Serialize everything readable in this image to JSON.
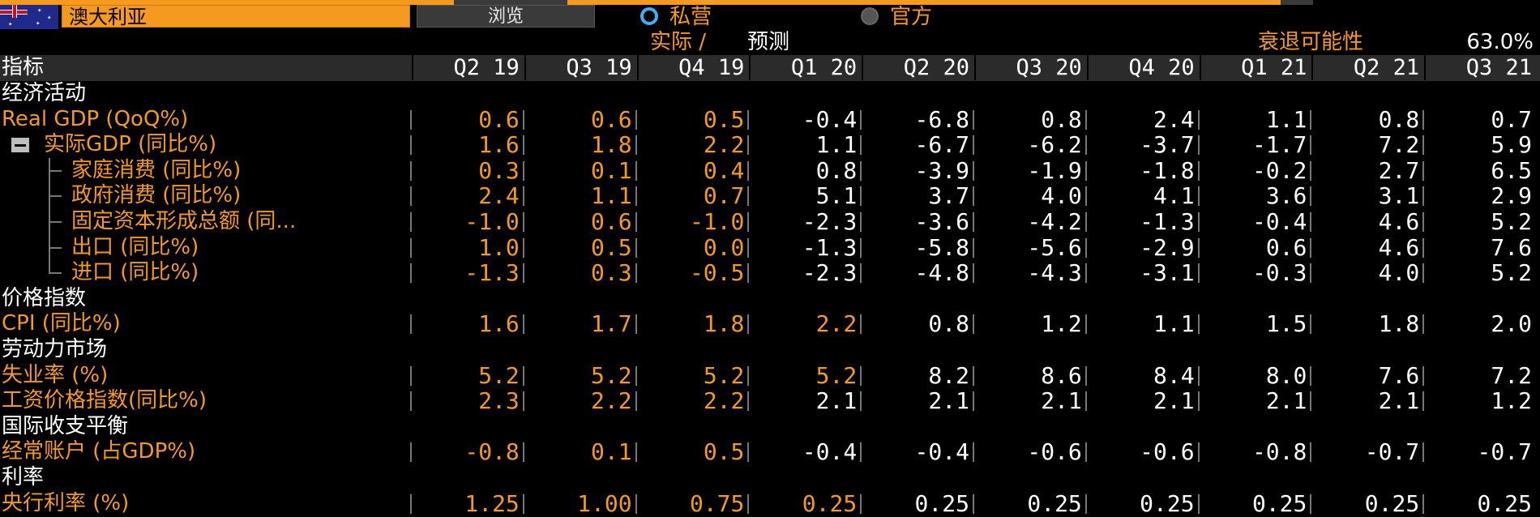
{
  "top_bar": {
    "country": "澳大利亚",
    "browse_label": "浏览",
    "radio_private": "私营",
    "radio_official": "官方",
    "flag_icon": "australia-flag-icon"
  },
  "subheader": {
    "actual_label": "实际 /",
    "forecast_label": "预测",
    "recession_label": "衰退可能性",
    "recession_value": "63.0%"
  },
  "colors": {
    "actual": "#f59a1e",
    "forecast": "#ffffff",
    "header_bg": "#2b2b2b",
    "background": "#000000"
  },
  "table": {
    "header_label": "指标",
    "columns": [
      "Q2 19",
      "Q3 19",
      "Q4 19",
      "Q1 20",
      "Q2 20",
      "Q3 20",
      "Q4 20",
      "Q1 21",
      "Q2 21",
      "Q3 21"
    ],
    "rows": [
      {
        "type": "section",
        "label": "经济活动"
      },
      {
        "type": "data",
        "label": "Real GDP (QoQ%)",
        "actual_count": 3,
        "values": [
          "0.6",
          "0.6",
          "0.5",
          "-0.4",
          "-6.8",
          "0.8",
          "2.4",
          "1.1",
          "0.8",
          "0.7"
        ]
      },
      {
        "type": "parent",
        "label": "实际GDP (同比%)",
        "actual_count": 3,
        "values": [
          "1.6",
          "1.8",
          "2.2",
          "1.1",
          "-6.7",
          "-6.2",
          "-3.7",
          "-1.7",
          "7.2",
          "5.9"
        ]
      },
      {
        "type": "child",
        "label": "家庭消费 (同比%)",
        "actual_count": 3,
        "values": [
          "0.3",
          "0.1",
          "0.4",
          "0.8",
          "-3.9",
          "-1.9",
          "-1.8",
          "-0.2",
          "2.7",
          "6.5"
        ]
      },
      {
        "type": "child",
        "label": "政府消费 (同比%)",
        "actual_count": 3,
        "values": [
          "2.4",
          "1.1",
          "0.7",
          "5.1",
          "3.7",
          "4.0",
          "4.1",
          "3.6",
          "3.1",
          "2.9"
        ]
      },
      {
        "type": "child",
        "label": "固定资本形成总额 (同...",
        "actual_count": 3,
        "values": [
          "-1.0",
          "0.6",
          "-1.0",
          "-2.3",
          "-3.6",
          "-4.2",
          "-1.3",
          "-0.4",
          "4.6",
          "5.2"
        ]
      },
      {
        "type": "child",
        "label": "出口 (同比%)",
        "actual_count": 3,
        "values": [
          "1.0",
          "0.5",
          "0.0",
          "-1.3",
          "-5.8",
          "-5.6",
          "-2.9",
          "0.6",
          "4.6",
          "7.6"
        ]
      },
      {
        "type": "child-last",
        "label": "进口 (同比%)",
        "actual_count": 3,
        "values": [
          "-1.3",
          "0.3",
          "-0.5",
          "-2.3",
          "-4.8",
          "-4.3",
          "-3.1",
          "-0.3",
          "4.0",
          "5.2"
        ]
      },
      {
        "type": "section",
        "label": "价格指数"
      },
      {
        "type": "data",
        "label": "CPI (同比%)",
        "actual_count": 4,
        "values": [
          "1.6",
          "1.7",
          "1.8",
          "2.2",
          "0.8",
          "1.2",
          "1.1",
          "1.5",
          "1.8",
          "2.0"
        ]
      },
      {
        "type": "section",
        "label": "劳动力市场"
      },
      {
        "type": "data",
        "label": "失业率 (%)",
        "actual_count": 4,
        "values": [
          "5.2",
          "5.2",
          "5.2",
          "5.2",
          "8.2",
          "8.6",
          "8.4",
          "8.0",
          "7.6",
          "7.2"
        ]
      },
      {
        "type": "data",
        "label": "工资价格指数(同比%)",
        "actual_count": 3,
        "values": [
          "2.3",
          "2.2",
          "2.2",
          "2.1",
          "2.1",
          "2.1",
          "2.1",
          "2.1",
          "2.1",
          "1.2"
        ]
      },
      {
        "type": "section",
        "label": "国际收支平衡"
      },
      {
        "type": "data",
        "label": "经常账户 (占GDP%)",
        "actual_count": 3,
        "values": [
          "-0.8",
          "0.1",
          "0.5",
          "-0.4",
          "-0.4",
          "-0.6",
          "-0.6",
          "-0.8",
          "-0.7",
          "-0.7"
        ]
      },
      {
        "type": "section",
        "label": "利率"
      },
      {
        "type": "data",
        "label": "央行利率 (%)",
        "actual_count": 4,
        "values": [
          "1.25",
          "1.00",
          "0.75",
          "0.25",
          "0.25",
          "0.25",
          "0.25",
          "0.25",
          "0.25",
          "0.25"
        ]
      }
    ]
  }
}
